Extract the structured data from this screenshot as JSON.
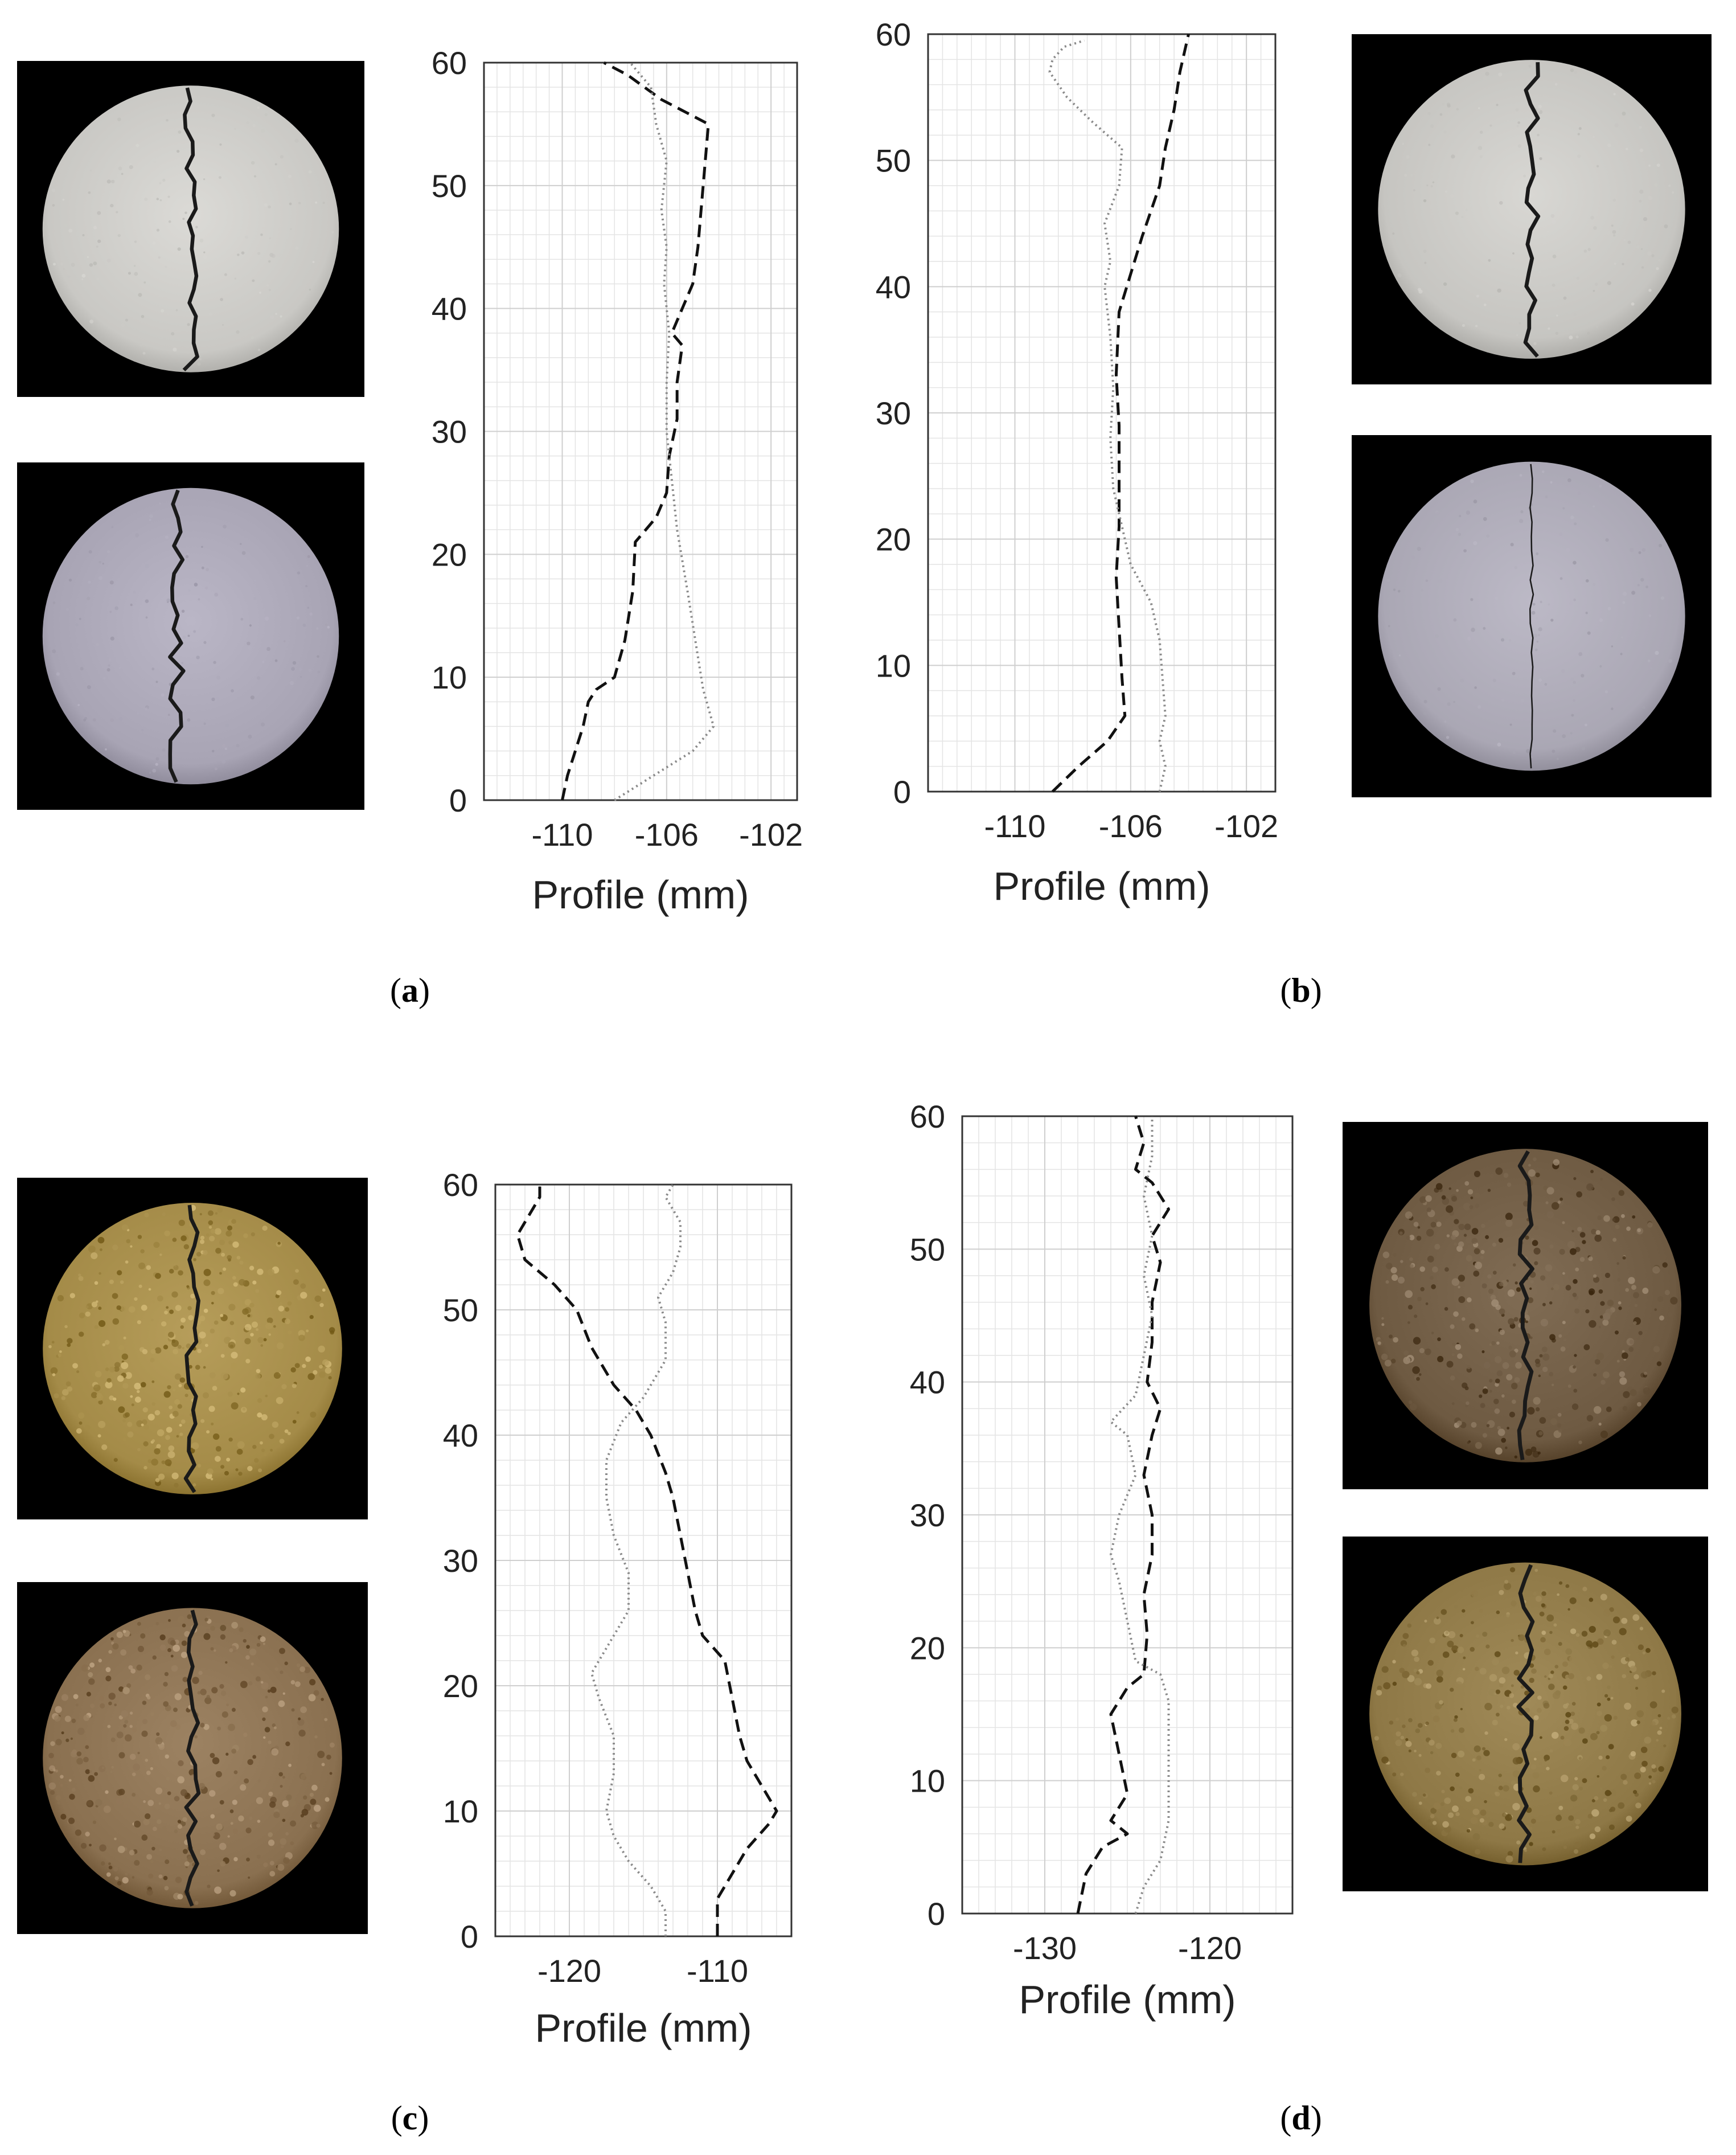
{
  "captions": {
    "a": {
      "open": "(",
      "letter": "a",
      "close": ")"
    },
    "b": {
      "open": "(",
      "letter": "b",
      "close": ")"
    },
    "c": {
      "open": "(",
      "letter": "c",
      "close": ")"
    },
    "d": {
      "open": "(",
      "letter": "d",
      "close": ")"
    }
  },
  "photos": [
    {
      "panel": "a",
      "row": "top",
      "surface": "light-grey",
      "color": "#c9c8c4",
      "crack": "vertical-center"
    },
    {
      "panel": "a",
      "row": "bottom",
      "surface": "grey-lavender",
      "color": "#a8a4b4",
      "crack": "vertical-left"
    },
    {
      "panel": "b",
      "row": "top",
      "surface": "light-grey",
      "color": "#c6c5c1",
      "crack": "vertical-center"
    },
    {
      "panel": "b",
      "row": "bottom",
      "surface": "grey-lavender",
      "color": "#aaa7b4",
      "crack": "thin-vertical"
    },
    {
      "panel": "c",
      "row": "top",
      "surface": "yellow-sandstone",
      "color": "#a48b48",
      "crack": "vertical-center"
    },
    {
      "panel": "c",
      "row": "bottom",
      "surface": "brown-sandstone",
      "color": "#8a7050",
      "crack": "vertical-center"
    },
    {
      "panel": "d",
      "row": "top",
      "surface": "dark-sandstone",
      "color": "#6e5a42",
      "crack": "vertical-center"
    },
    {
      "panel": "d",
      "row": "bottom",
      "surface": "yellow-sandstone",
      "color": "#8e7846",
      "crack": "vertical-center"
    }
  ],
  "chart_data": [
    {
      "panel": "a",
      "type": "line",
      "xlabel": "Profile (mm)",
      "ylabel": "",
      "xlim": [
        -113,
        -101
      ],
      "ylim": [
        0,
        60
      ],
      "xticks": [
        -110,
        -106,
        -102
      ],
      "xtick_labels": [
        "-110",
        "-106",
        "-102"
      ],
      "yticks": [
        0,
        10,
        20,
        30,
        40,
        50,
        60
      ],
      "ytick_labels": [
        "0",
        "10",
        "20",
        "30",
        "40",
        "50",
        "60"
      ],
      "grid": true,
      "series": [
        {
          "style": "dashed",
          "points": [
            [
              -110.0,
              0
            ],
            [
              -109.8,
              2
            ],
            [
              -109.5,
              4
            ],
            [
              -109.2,
              6
            ],
            [
              -109.0,
              8
            ],
            [
              -108.7,
              9
            ],
            [
              -108.0,
              10
            ],
            [
              -107.6,
              13
            ],
            [
              -107.3,
              17
            ],
            [
              -107.2,
              21
            ],
            [
              -106.4,
              23
            ],
            [
              -106.0,
              25
            ],
            [
              -105.9,
              28
            ],
            [
              -105.6,
              31
            ],
            [
              -105.6,
              34
            ],
            [
              -105.4,
              37
            ],
            [
              -105.8,
              38
            ],
            [
              -105.4,
              40
            ],
            [
              -105.0,
              42
            ],
            [
              -104.8,
              45
            ],
            [
              -104.6,
              50
            ],
            [
              -104.4,
              55
            ],
            [
              -106.2,
              57
            ],
            [
              -107.5,
              59
            ],
            [
              -108.4,
              60
            ]
          ]
        },
        {
          "style": "dotted",
          "points": [
            [
              -108.0,
              0
            ],
            [
              -106.5,
              2
            ],
            [
              -105.0,
              4
            ],
            [
              -104.2,
              6
            ],
            [
              -104.6,
              9
            ],
            [
              -104.9,
              13
            ],
            [
              -105.2,
              17
            ],
            [
              -105.6,
              22
            ],
            [
              -105.8,
              26
            ],
            [
              -106.0,
              30
            ],
            [
              -106.0,
              34
            ],
            [
              -105.9,
              38
            ],
            [
              -106.1,
              42
            ],
            [
              -106.0,
              45
            ],
            [
              -106.2,
              48
            ],
            [
              -106.0,
              52
            ],
            [
              -106.4,
              55
            ],
            [
              -106.6,
              58
            ],
            [
              -107.4,
              60
            ]
          ]
        }
      ]
    },
    {
      "panel": "b",
      "type": "line",
      "xlabel": "Profile (mm)",
      "ylabel": "",
      "xlim": [
        -113,
        -101
      ],
      "ylim": [
        0,
        60
      ],
      "xticks": [
        -110,
        -106,
        -102
      ],
      "xtick_labels": [
        "-110",
        "-106",
        "-102"
      ],
      "yticks": [
        0,
        10,
        20,
        30,
        40,
        50,
        60
      ],
      "ytick_labels": [
        "0",
        "10",
        "20",
        "30",
        "40",
        "50",
        "60"
      ],
      "grid": true,
      "series": [
        {
          "style": "dashed",
          "points": [
            [
              -108.7,
              0
            ],
            [
              -107.8,
              2
            ],
            [
              -106.8,
              4
            ],
            [
              -106.2,
              6
            ],
            [
              -106.3,
              9
            ],
            [
              -106.4,
              13
            ],
            [
              -106.5,
              17
            ],
            [
              -106.4,
              21
            ],
            [
              -106.4,
              25
            ],
            [
              -106.4,
              29
            ],
            [
              -106.5,
              33
            ],
            [
              -106.4,
              38
            ],
            [
              -106.0,
              41
            ],
            [
              -105.6,
              44
            ],
            [
              -105.0,
              48
            ],
            [
              -104.8,
              51
            ],
            [
              -104.5,
              54
            ],
            [
              -104.3,
              57
            ],
            [
              -104.0,
              60
            ]
          ]
        },
        {
          "style": "dotted",
          "points": [
            [
              -105.0,
              0
            ],
            [
              -104.8,
              2
            ],
            [
              -105.0,
              4
            ],
            [
              -104.8,
              6
            ],
            [
              -104.9,
              9
            ],
            [
              -105.0,
              12
            ],
            [
              -105.3,
              15
            ],
            [
              -106.0,
              18
            ],
            [
              -106.3,
              21
            ],
            [
              -106.6,
              24
            ],
            [
              -106.7,
              28
            ],
            [
              -106.6,
              32
            ],
            [
              -106.7,
              36
            ],
            [
              -106.9,
              40
            ],
            [
              -106.7,
              42
            ],
            [
              -106.9,
              45
            ],
            [
              -106.4,
              48
            ],
            [
              -106.3,
              51
            ],
            [
              -107.3,
              53
            ],
            [
              -108.2,
              55
            ],
            [
              -108.8,
              57
            ],
            [
              -108.7,
              58
            ],
            [
              -108.3,
              59
            ],
            [
              -107.6,
              59.5
            ]
          ]
        }
      ]
    },
    {
      "panel": "c",
      "type": "line",
      "xlabel": "Profile (mm)",
      "ylabel": "",
      "xlim": [
        -125,
        -105
      ],
      "ylim": [
        0,
        60
      ],
      "xticks": [
        -120,
        -110
      ],
      "xtick_labels": [
        "-120",
        "-110"
      ],
      "yticks": [
        0,
        10,
        20,
        30,
        40,
        50,
        60
      ],
      "ytick_labels": [
        "0",
        "10",
        "20",
        "30",
        "40",
        "50",
        "60"
      ],
      "grid": true,
      "series": [
        {
          "style": "dashed",
          "points": [
            [
              -110.0,
              0
            ],
            [
              -110.0,
              3
            ],
            [
              -109.0,
              5
            ],
            [
              -108.0,
              7
            ],
            [
              -106.5,
              9
            ],
            [
              -106.0,
              10
            ],
            [
              -107.0,
              12
            ],
            [
              -108.0,
              14
            ],
            [
              -108.5,
              16
            ],
            [
              -109.0,
              19
            ],
            [
              -109.5,
              22
            ],
            [
              -111.0,
              24
            ],
            [
              -111.5,
              26
            ],
            [
              -112.0,
              29
            ],
            [
              -112.5,
              32
            ],
            [
              -113.0,
              35
            ],
            [
              -113.5,
              37
            ],
            [
              -114.5,
              40
            ],
            [
              -115.5,
              42
            ],
            [
              -117.0,
              44
            ],
            [
              -118.5,
              47
            ],
            [
              -119.5,
              50
            ],
            [
              -121.0,
              52
            ],
            [
              -123.0,
              54
            ],
            [
              -123.5,
              56
            ],
            [
              -122.0,
              59
            ],
            [
              -122.0,
              60
            ]
          ]
        },
        {
          "style": "dotted",
          "points": [
            [
              -113.5,
              0
            ],
            [
              -113.5,
              2
            ],
            [
              -114.5,
              4
            ],
            [
              -116.0,
              6
            ],
            [
              -117.0,
              8
            ],
            [
              -117.5,
              10
            ],
            [
              -117.0,
              13
            ],
            [
              -117.0,
              16
            ],
            [
              -118.0,
              19
            ],
            [
              -118.5,
              21
            ],
            [
              -117.5,
              23
            ],
            [
              -116.0,
              26
            ],
            [
              -116.0,
              29
            ],
            [
              -117.0,
              32
            ],
            [
              -117.5,
              35
            ],
            [
              -117.5,
              38
            ],
            [
              -116.5,
              41
            ],
            [
              -115.0,
              43
            ],
            [
              -113.5,
              46
            ],
            [
              -113.5,
              49
            ],
            [
              -114.0,
              51
            ],
            [
              -113.0,
              53
            ],
            [
              -112.5,
              55
            ],
            [
              -112.5,
              57
            ],
            [
              -113.5,
              59
            ],
            [
              -113.0,
              60
            ]
          ]
        }
      ]
    },
    {
      "panel": "d",
      "type": "line",
      "xlabel": "Profile (mm)",
      "ylabel": "",
      "xlim": [
        -135,
        -115
      ],
      "ylim": [
        0,
        60
      ],
      "xticks": [
        -130,
        -120
      ],
      "xtick_labels": [
        "-130",
        "-120"
      ],
      "yticks": [
        0,
        10,
        20,
        30,
        40,
        50,
        60
      ],
      "ytick_labels": [
        "0",
        "10",
        "20",
        "30",
        "40",
        "50",
        "60"
      ],
      "grid": true,
      "series": [
        {
          "style": "dashed",
          "points": [
            [
              -128.0,
              0
            ],
            [
              -127.5,
              3
            ],
            [
              -126.5,
              5
            ],
            [
              -125.0,
              6
            ],
            [
              -126.0,
              7
            ],
            [
              -125.0,
              9
            ],
            [
              -125.5,
              12
            ],
            [
              -126.0,
              15
            ],
            [
              -125.0,
              17
            ],
            [
              -124.0,
              18
            ],
            [
              -123.8,
              21
            ],
            [
              -124.0,
              24
            ],
            [
              -123.5,
              27
            ],
            [
              -123.5,
              30
            ],
            [
              -124.0,
              33
            ],
            [
              -123.5,
              36
            ],
            [
              -123.0,
              38
            ],
            [
              -123.8,
              40
            ],
            [
              -123.5,
              43
            ],
            [
              -123.5,
              46
            ],
            [
              -123.0,
              49
            ],
            [
              -123.5,
              51
            ],
            [
              -122.5,
              53
            ],
            [
              -123.5,
              55
            ],
            [
              -124.5,
              56
            ],
            [
              -124.0,
              58
            ],
            [
              -124.5,
              60
            ]
          ]
        },
        {
          "style": "dotted",
          "points": [
            [
              -124.5,
              0
            ],
            [
              -124.0,
              2
            ],
            [
              -123.0,
              4
            ],
            [
              -122.5,
              7
            ],
            [
              -122.5,
              10
            ],
            [
              -122.5,
              13
            ],
            [
              -122.5,
              16
            ],
            [
              -123.0,
              18
            ],
            [
              -124.5,
              19
            ],
            [
              -125.0,
              22
            ],
            [
              -125.5,
              25
            ],
            [
              -126.0,
              27
            ],
            [
              -125.5,
              30
            ],
            [
              -124.5,
              33
            ],
            [
              -125.0,
              36
            ],
            [
              -126.0,
              37
            ],
            [
              -124.5,
              39
            ],
            [
              -124.0,
              42
            ],
            [
              -123.5,
              45
            ],
            [
              -124.0,
              48
            ],
            [
              -123.5,
              51
            ],
            [
              -124.0,
              54
            ],
            [
              -123.5,
              57
            ],
            [
              -123.5,
              60
            ]
          ]
        }
      ]
    }
  ]
}
